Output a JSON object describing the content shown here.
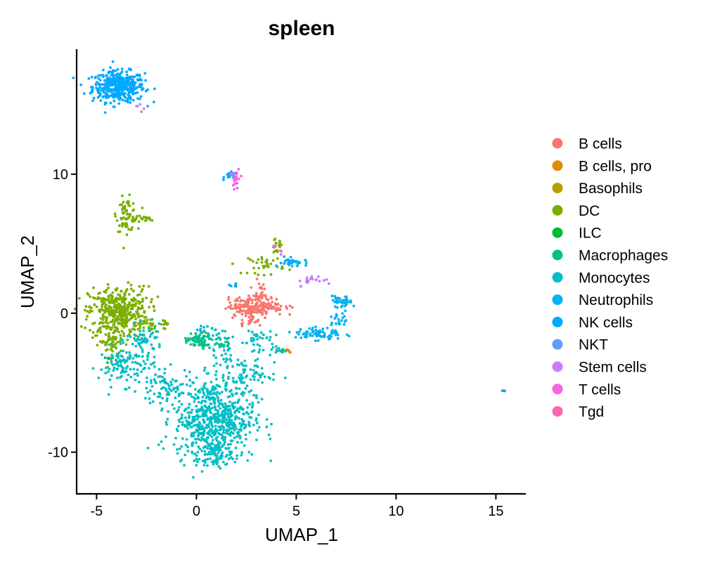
{
  "chart_data": {
    "type": "scatter",
    "title": "spleen",
    "xlabel": "UMAP_1",
    "ylabel": "UMAP_2",
    "xlim": [
      -6,
      16.5
    ],
    "ylim": [
      -13,
      19
    ],
    "xticks": [
      -5,
      0,
      5,
      10,
      15
    ],
    "yticks": [
      -10,
      0,
      10
    ],
    "grid": false,
    "legend_position": "right",
    "series": [
      {
        "name": "B cells",
        "color": "#F8766D"
      },
      {
        "name": "B cells, pro",
        "color": "#DE8C00"
      },
      {
        "name": "Basophils",
        "color": "#B79F00"
      },
      {
        "name": "DC",
        "color": "#7CAE00"
      },
      {
        "name": "ILC",
        "color": "#00BA38"
      },
      {
        "name": "Macrophages",
        "color": "#00C08B"
      },
      {
        "name": "Monocytes",
        "color": "#00BFC4"
      },
      {
        "name": "Neutrophils",
        "color": "#00B4F0"
      },
      {
        "name": "NK cells",
        "color": "#00A9FF"
      },
      {
        "name": "NKT",
        "color": "#619CFF"
      },
      {
        "name": "Stem cells",
        "color": "#C77CFF"
      },
      {
        "name": "T cells",
        "color": "#F564E3"
      },
      {
        "name": "Tgd",
        "color": "#FF64B0"
      }
    ],
    "clusters": [
      {
        "series": "NK cells",
        "cx": -3.9,
        "cy": 16.3,
        "sx": 0.65,
        "sy": 0.55,
        "n": 420
      },
      {
        "series": "Stem cells",
        "cx": -2.8,
        "cy": 15.0,
        "sx": 0.2,
        "sy": 0.3,
        "n": 5
      },
      {
        "series": "NK cells",
        "cx": 1.7,
        "cy": 9.9,
        "sx": 0.15,
        "sy": 0.12,
        "n": 20
      },
      {
        "series": "T cells",
        "cx": 2.0,
        "cy": 9.6,
        "sx": 0.1,
        "sy": 0.4,
        "n": 25
      },
      {
        "series": "DC",
        "cx": -3.5,
        "cy": 7.1,
        "sx": 0.25,
        "sy": 0.6,
        "n": 70
      },
      {
        "series": "DC",
        "cx": -2.8,
        "cy": 6.8,
        "sx": 0.35,
        "sy": 0.12,
        "n": 20
      },
      {
        "series": "DC",
        "cx": -3.9,
        "cy": 0.1,
        "sx": 0.75,
        "sy": 0.9,
        "n": 420
      },
      {
        "series": "DC",
        "cx": -4.3,
        "cy": -2.0,
        "sx": 0.3,
        "sy": 0.6,
        "n": 60
      },
      {
        "series": "DC",
        "cx": -1.5,
        "cy": -0.8,
        "sx": 0.15,
        "sy": 0.2,
        "n": 12
      },
      {
        "series": "DC",
        "cx": -2.3,
        "cy": -1.0,
        "sx": 0.25,
        "sy": 0.2,
        "n": 15
      },
      {
        "series": "DC",
        "cx": 3.5,
        "cy": 3.5,
        "sx": 0.45,
        "sy": 0.35,
        "n": 35
      },
      {
        "series": "DC",
        "cx": 4.0,
        "cy": 4.8,
        "sx": 0.15,
        "sy": 0.25,
        "n": 15
      },
      {
        "series": "Monocytes",
        "cx": -3.5,
        "cy": -3.8,
        "sx": 0.7,
        "sy": 0.7,
        "n": 120
      },
      {
        "series": "Monocytes",
        "cx": -2.6,
        "cy": -1.9,
        "sx": 0.45,
        "sy": 0.5,
        "n": 60
      },
      {
        "series": "Monocytes",
        "cx": -1.5,
        "cy": -5.5,
        "sx": 0.7,
        "sy": 0.7,
        "n": 70
      },
      {
        "series": "Monocytes",
        "cx": 0.9,
        "cy": -7.6,
        "sx": 1.0,
        "sy": 1.4,
        "n": 650
      },
      {
        "series": "Monocytes",
        "cx": 0.9,
        "cy": -10.2,
        "sx": 0.45,
        "sy": 0.45,
        "n": 70
      },
      {
        "series": "Monocytes",
        "cx": 2.2,
        "cy": -4.4,
        "sx": 0.8,
        "sy": 0.6,
        "n": 80
      },
      {
        "series": "Monocytes",
        "cx": 3.0,
        "cy": -2.0,
        "sx": 0.4,
        "sy": 0.6,
        "n": 40
      },
      {
        "series": "Monocytes",
        "cx": 0.8,
        "cy": -1.5,
        "sx": 0.6,
        "sy": 0.35,
        "n": 25
      },
      {
        "series": "Monocytes",
        "cx": 1.3,
        "cy": -2.8,
        "sx": 0.3,
        "sy": 0.4,
        "n": 15
      },
      {
        "series": "Monocytes",
        "cx": 4.1,
        "cy": -2.6,
        "sx": 0.15,
        "sy": 0.1,
        "n": 8
      },
      {
        "series": "Macrophages",
        "cx": 0.1,
        "cy": -2.0,
        "sx": 0.35,
        "sy": 0.3,
        "n": 70
      },
      {
        "series": "Macrophages",
        "cx": 1.4,
        "cy": -2.2,
        "sx": 0.2,
        "sy": 0.15,
        "n": 12
      },
      {
        "series": "Macrophages",
        "cx": 4.3,
        "cy": -2.7,
        "sx": 0.15,
        "sy": 0.1,
        "n": 6
      },
      {
        "series": "B cells",
        "cx": 3.0,
        "cy": 0.5,
        "sx": 0.7,
        "sy": 0.35,
        "n": 200
      },
      {
        "series": "B cells",
        "cx": 3.1,
        "cy": 1.6,
        "sx": 0.15,
        "sy": 0.35,
        "n": 20
      },
      {
        "series": "B cells",
        "cx": 2.7,
        "cy": -0.5,
        "sx": 0.3,
        "sy": 0.2,
        "n": 20
      },
      {
        "series": "B cells",
        "cx": 15.35,
        "cy": -5.6,
        "sx": 0.04,
        "sy": 0.04,
        "n": 3
      },
      {
        "series": "B cells, pro",
        "cx": 4.6,
        "cy": -2.7,
        "sx": 0.1,
        "sy": 0.08,
        "n": 5
      },
      {
        "series": "Neutrophils",
        "cx": 6.1,
        "cy": -1.5,
        "sx": 0.6,
        "sy": 0.25,
        "n": 70
      },
      {
        "series": "Neutrophils",
        "cx": 7.1,
        "cy": -0.4,
        "sx": 0.25,
        "sy": 0.35,
        "n": 20
      },
      {
        "series": "Neutrophils",
        "cx": 7.3,
        "cy": 0.8,
        "sx": 0.25,
        "sy": 0.2,
        "n": 40
      },
      {
        "series": "Neutrophils",
        "cx": 5.0,
        "cy": 3.6,
        "sx": 0.35,
        "sy": 0.2,
        "n": 20
      },
      {
        "series": "Neutrophils",
        "cx": 15.35,
        "cy": -5.6,
        "sx": 0.04,
        "sy": 0.04,
        "n": 3
      },
      {
        "series": "NK cells",
        "cx": 4.6,
        "cy": 3.7,
        "sx": 0.2,
        "sy": 0.2,
        "n": 12
      },
      {
        "series": "NK cells",
        "cx": 1.9,
        "cy": 2.0,
        "sx": 0.15,
        "sy": 0.1,
        "n": 6
      },
      {
        "series": "NK cells",
        "cx": 0.2,
        "cy": -1.1,
        "sx": 0.1,
        "sy": 0.1,
        "n": 3
      },
      {
        "series": "Stem cells",
        "cx": 5.9,
        "cy": 2.4,
        "sx": 0.5,
        "sy": 0.2,
        "n": 18
      },
      {
        "series": "Stem cells",
        "cx": 4.2,
        "cy": 4.5,
        "sx": 0.1,
        "sy": 0.1,
        "n": 3
      },
      {
        "series": "ILC",
        "cx": -4.5,
        "cy": -3.3,
        "sx": 0.08,
        "sy": 0.08,
        "n": 3
      },
      {
        "series": "T cells",
        "cx": 4.0,
        "cy": 5.0,
        "sx": 0.1,
        "sy": 0.1,
        "n": 2
      }
    ]
  }
}
